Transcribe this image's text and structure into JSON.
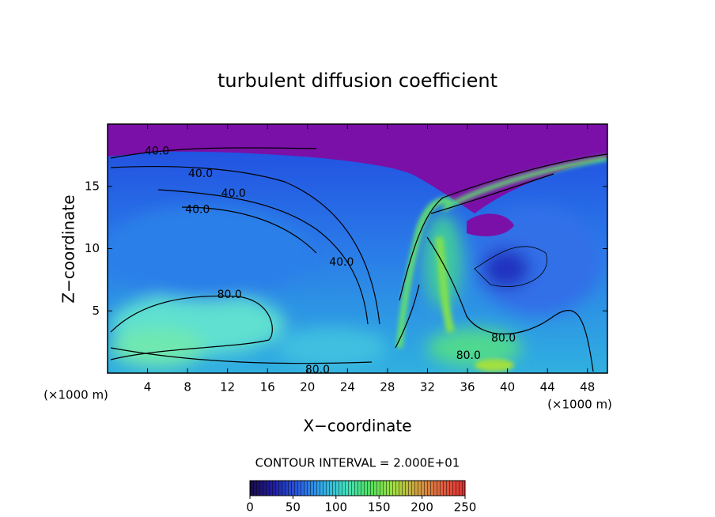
{
  "chart_data": {
    "type": "contour",
    "title": "turbulent diffusion coefficient",
    "xlabel": "X−coordinate",
    "ylabel": "Z−coordinate",
    "x_unit_left": "(×1000 m)",
    "x_unit_right": "(×1000 m)",
    "xlim": [
      0,
      50
    ],
    "xticks": [
      4,
      8,
      12,
      16,
      20,
      24,
      28,
      32,
      36,
      40,
      44,
      48
    ],
    "ylim": [
      0,
      20
    ],
    "yticks": [
      5,
      10,
      15
    ],
    "contour_interval_text": "CONTOUR INTERVAL = 2.000E+01",
    "contour_labels": [
      {
        "x": 4.95,
        "y": 17.8,
        "value": 40,
        "label": "40.0"
      },
      {
        "x": 9.3,
        "y": 16.0,
        "value": 40,
        "label": "40.0"
      },
      {
        "x": 12.6,
        "y": 14.4,
        "value": 40,
        "label": "40.0"
      },
      {
        "x": 9.0,
        "y": 13.1,
        "value": 40,
        "label": "40.0"
      },
      {
        "x": 23.4,
        "y": 8.9,
        "value": 40,
        "label": "40.0"
      },
      {
        "x": 12.2,
        "y": 6.3,
        "value": 80,
        "label": "80.0"
      },
      {
        "x": 21.0,
        "y": 0.25,
        "value": 80,
        "label": "80.0"
      },
      {
        "x": 39.6,
        "y": 2.8,
        "value": 80,
        "label": "80.0"
      },
      {
        "x": 36.1,
        "y": 1.4,
        "value": 80,
        "label": "80.0"
      }
    ],
    "colorbar": {
      "lim": [
        0,
        250
      ],
      "ticks": [
        0,
        50,
        100,
        150,
        200,
        250
      ],
      "colors": [
        "#1a0a4a",
        "#2020a0",
        "#2a5ae0",
        "#30a8e8",
        "#40e0c0",
        "#50e060",
        "#a0e040",
        "#d0a040",
        "#e06040",
        "#e03030"
      ]
    }
  }
}
